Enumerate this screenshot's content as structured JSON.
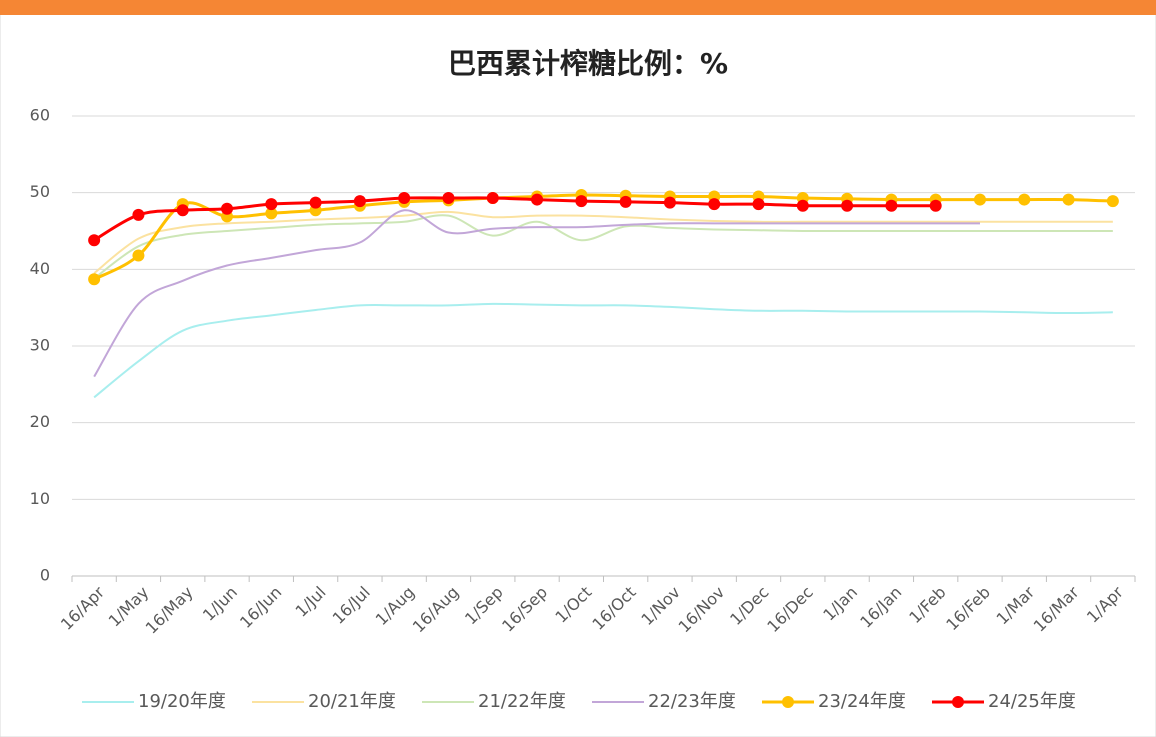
{
  "chart_data": {
    "type": "line",
    "title": "巴西累计榨糖比例：%",
    "categories": [
      "16/Apr",
      "1/May",
      "16/May",
      "1/Jun",
      "16/Jun",
      "1/Jul",
      "16/Jul",
      "1/Aug",
      "16/Aug",
      "1/Sep",
      "16/Sep",
      "1/Oct",
      "16/Oct",
      "1/Nov",
      "16/Nov",
      "1/Dec",
      "16/Dec",
      "1/Jan",
      "16/Jan",
      "1/Feb",
      "16/Feb",
      "1/Mar",
      "16/Mar",
      "1/Apr"
    ],
    "series": [
      {
        "name": "19/20年度",
        "color": "#a8eeee",
        "marker": false,
        "values": [
          23.3,
          28,
          32,
          33.3,
          34,
          34.7,
          35.3,
          35.3,
          35.3,
          35.5,
          35.4,
          35.3,
          35.3,
          35.1,
          34.8,
          34.6,
          34.6,
          34.5,
          34.5,
          34.5,
          34.5,
          34.4,
          34.3,
          34.4
        ]
      },
      {
        "name": "20/21年度",
        "color": "#fbe2a0",
        "marker": false,
        "values": [
          39.5,
          44,
          45.5,
          46,
          46.2,
          46.5,
          46.7,
          47,
          47.5,
          46.8,
          47,
          47,
          46.8,
          46.5,
          46.3,
          46.2,
          46.2,
          46.2,
          46.2,
          46.2,
          46.2,
          46.2,
          46.2,
          46.2
        ]
      },
      {
        "name": "21/22年度",
        "color": "#cde6b6",
        "marker": false,
        "values": [
          38.8,
          43,
          44.5,
          45,
          45.4,
          45.8,
          46,
          46.2,
          47,
          44.4,
          46.2,
          43.8,
          45.6,
          45.4,
          45.2,
          45.1,
          45,
          45,
          45,
          45,
          45,
          45,
          45,
          45
        ]
      },
      {
        "name": "22/23年度",
        "color": "#c2a6d8",
        "marker": false,
        "values": [
          26,
          35.5,
          38.5,
          40.5,
          41.5,
          42.5,
          43.5,
          47.7,
          44.8,
          45.3,
          45.5,
          45.5,
          45.8,
          46,
          46,
          46,
          46,
          46,
          46,
          46,
          46,
          null,
          null,
          null
        ]
      },
      {
        "name": "23/24年度",
        "color": "#ffc000",
        "marker": true,
        "values": [
          38.7,
          41.8,
          48.5,
          46.9,
          47.3,
          47.7,
          48.3,
          48.8,
          49,
          49.3,
          49.5,
          49.7,
          49.6,
          49.5,
          49.5,
          49.5,
          49.3,
          49.2,
          49.1,
          49.1,
          49.1,
          49.1,
          49.1,
          48.9
        ]
      },
      {
        "name": "24/25年度",
        "color": "#ff0000",
        "marker": true,
        "values": [
          43.8,
          47.1,
          47.7,
          47.9,
          48.5,
          48.7,
          48.9,
          49.3,
          49.3,
          49.3,
          49.1,
          48.9,
          48.8,
          48.7,
          48.5,
          48.5,
          48.3,
          48.3,
          48.3,
          48.3,
          null,
          null,
          null,
          null
        ]
      }
    ],
    "ylim": [
      0,
      60
    ],
    "yticks": [
      0,
      10,
      20,
      30,
      40,
      50,
      60
    ],
    "grid": true,
    "legend": "bottom"
  }
}
